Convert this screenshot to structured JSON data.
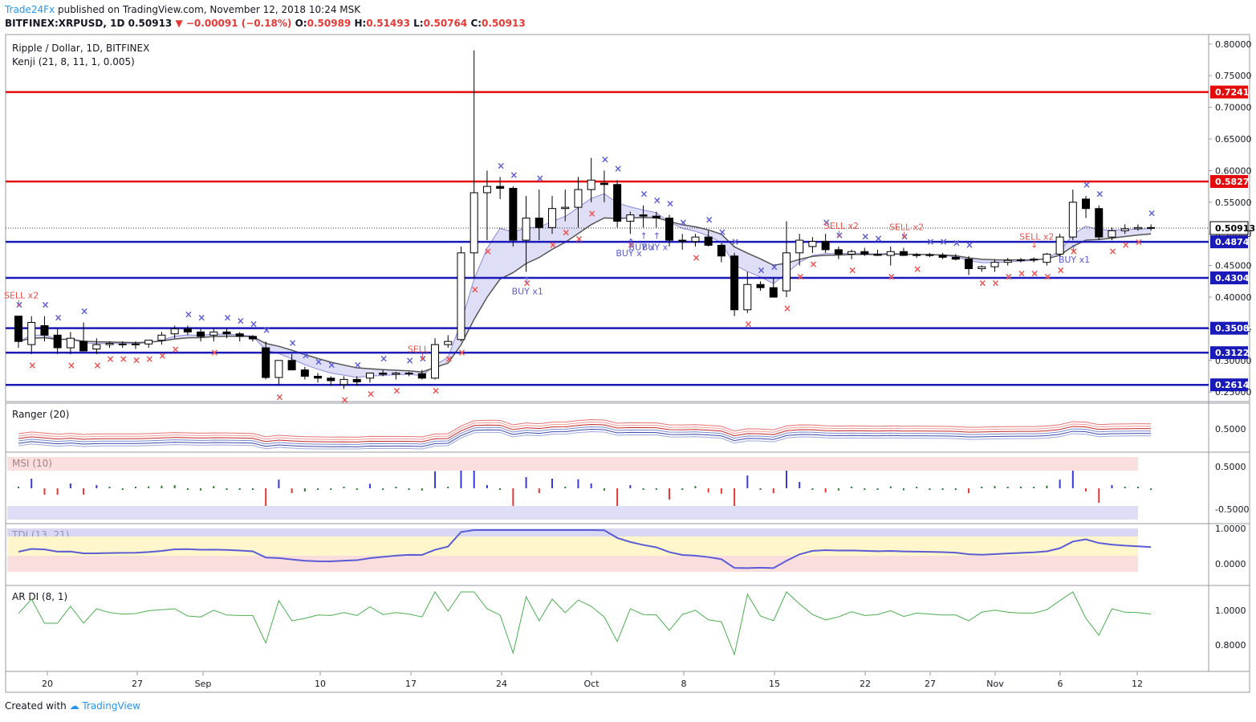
{
  "header": {
    "author": "Trade24Fx",
    "published_text": "published on TradingView.com, November 12, 2018 10:24 MSK",
    "symbol": "BITFINEX:XRPUSD, 1D",
    "last": "0.50913",
    "change": "▼ −0.00091 (−0.18%)",
    "open_label": "O:",
    "open": "0.50989",
    "high_label": "H:",
    "high": "0.51493",
    "low_label": "L:",
    "low": "0.50764",
    "close_label": "C:",
    "close": "0.50913"
  },
  "legend": {
    "title": "Ripple / Dollar, 1D, BITFINEX",
    "kenji": "Kenji (21, 8, 11, 1, 0.005)"
  },
  "footer": {
    "created_with": "Created with",
    "brand": "TradingView"
  },
  "colors": {
    "up_candle": "#ffffff",
    "down_candle": "#000000",
    "resistance": "#e30b0b",
    "support": "#1a1ab8",
    "buy_marker": "#5b5bd6",
    "sell_marker": "#ef5350",
    "panel_border": "#9598a1"
  },
  "chart_data": {
    "type": "candlestick",
    "title": "Ripple / Dollar, 1D, BITFINEX",
    "x_ticks": [
      "20",
      "27",
      "Sep",
      "10",
      "17",
      "24",
      "Oct",
      "8",
      "15",
      "22",
      "27",
      "Nov",
      "6",
      "12"
    ],
    "y_ticks": [
      "0.80000",
      "0.75000",
      "0.70000",
      "0.65000",
      "0.60000",
      "0.55000",
      "0.50000",
      "0.45000",
      "0.40000",
      "0.35000",
      "0.30000",
      "0.25000"
    ],
    "ylim": [
      0.235,
      0.815
    ],
    "candles": [
      [
        0.37,
        0.37,
        0.32,
        0.33
      ],
      [
        0.325,
        0.37,
        0.31,
        0.36
      ],
      [
        0.355,
        0.37,
        0.33,
        0.34
      ],
      [
        0.34,
        0.35,
        0.31,
        0.32
      ],
      [
        0.32,
        0.345,
        0.31,
        0.335
      ],
      [
        0.33,
        0.36,
        0.315,
        0.315
      ],
      [
        0.318,
        0.335,
        0.31,
        0.325
      ],
      [
        0.325,
        0.33,
        0.32,
        0.327
      ],
      [
        0.326,
        0.33,
        0.32,
        0.326
      ],
      [
        0.326,
        0.33,
        0.318,
        0.326
      ],
      [
        0.326,
        0.33,
        0.32,
        0.332
      ],
      [
        0.332,
        0.345,
        0.325,
        0.34
      ],
      [
        0.342,
        0.355,
        0.335,
        0.35
      ],
      [
        0.35,
        0.355,
        0.34,
        0.345
      ],
      [
        0.345,
        0.35,
        0.33,
        0.338
      ],
      [
        0.34,
        0.35,
        0.33,
        0.345
      ],
      [
        0.345,
        0.35,
        0.335,
        0.342
      ],
      [
        0.342,
        0.345,
        0.33,
        0.338
      ],
      [
        0.338,
        0.34,
        0.33,
        0.334
      ],
      [
        0.32,
        0.33,
        0.27,
        0.273
      ],
      [
        0.273,
        0.3,
        0.26,
        0.3
      ],
      [
        0.3,
        0.31,
        0.285,
        0.285
      ],
      [
        0.285,
        0.29,
        0.27,
        0.275
      ],
      [
        0.275,
        0.28,
        0.265,
        0.272
      ],
      [
        0.272,
        0.275,
        0.26,
        0.268
      ],
      [
        0.262,
        0.275,
        0.255,
        0.27
      ],
      [
        0.27,
        0.275,
        0.26,
        0.266
      ],
      [
        0.272,
        0.28,
        0.265,
        0.28
      ],
      [
        0.28,
        0.285,
        0.275,
        0.278
      ],
      [
        0.278,
        0.282,
        0.27,
        0.28
      ],
      [
        0.28,
        0.282,
        0.275,
        0.279
      ],
      [
        0.279,
        0.285,
        0.27,
        0.272
      ],
      [
        0.272,
        0.335,
        0.27,
        0.325
      ],
      [
        0.325,
        0.34,
        0.32,
        0.33
      ],
      [
        0.333,
        0.48,
        0.33,
        0.47
      ],
      [
        0.47,
        0.79,
        0.43,
        0.565
      ],
      [
        0.565,
        0.6,
        0.49,
        0.575
      ],
      [
        0.575,
        0.59,
        0.555,
        0.572
      ],
      [
        0.572,
        0.575,
        0.48,
        0.49
      ],
      [
        0.49,
        0.56,
        0.44,
        0.525
      ],
      [
        0.525,
        0.57,
        0.49,
        0.51
      ],
      [
        0.51,
        0.56,
        0.5,
        0.54
      ],
      [
        0.54,
        0.57,
        0.52,
        0.542
      ],
      [
        0.542,
        0.59,
        0.51,
        0.57
      ],
      [
        0.57,
        0.62,
        0.55,
        0.585
      ],
      [
        0.58,
        0.6,
        0.55,
        0.578
      ],
      [
        0.578,
        0.585,
        0.51,
        0.52
      ],
      [
        0.52,
        0.535,
        0.5,
        0.53
      ],
      [
        0.53,
        0.545,
        0.51,
        0.528
      ],
      [
        0.528,
        0.535,
        0.51,
        0.525
      ],
      [
        0.525,
        0.53,
        0.48,
        0.49
      ],
      [
        0.49,
        0.5,
        0.475,
        0.488
      ],
      [
        0.488,
        0.5,
        0.48,
        0.495
      ],
      [
        0.495,
        0.505,
        0.48,
        0.482
      ],
      [
        0.482,
        0.485,
        0.455,
        0.465
      ],
      [
        0.465,
        0.47,
        0.37,
        0.38
      ],
      [
        0.38,
        0.44,
        0.375,
        0.42
      ],
      [
        0.42,
        0.425,
        0.41,
        0.415
      ],
      [
        0.415,
        0.43,
        0.4,
        0.4
      ],
      [
        0.41,
        0.52,
        0.4,
        0.47
      ],
      [
        0.47,
        0.5,
        0.45,
        0.49
      ],
      [
        0.48,
        0.495,
        0.47,
        0.488
      ],
      [
        0.488,
        0.5,
        0.47,
        0.475
      ],
      [
        0.475,
        0.48,
        0.46,
        0.468
      ],
      [
        0.468,
        0.475,
        0.46,
        0.472
      ],
      [
        0.472,
        0.478,
        0.465,
        0.468
      ],
      [
        0.468,
        0.475,
        0.465,
        0.466
      ],
      [
        0.466,
        0.48,
        0.45,
        0.472
      ],
      [
        0.472,
        0.478,
        0.465,
        0.466
      ],
      [
        0.466,
        0.47,
        0.462,
        0.467
      ],
      [
        0.467,
        0.47,
        0.463,
        0.466
      ],
      [
        0.466,
        0.47,
        0.46,
        0.463
      ],
      [
        0.463,
        0.468,
        0.458,
        0.46
      ],
      [
        0.46,
        0.465,
        0.435,
        0.445
      ],
      [
        0.445,
        0.45,
        0.44,
        0.448
      ],
      [
        0.448,
        0.46,
        0.44,
        0.455
      ],
      [
        0.455,
        0.462,
        0.45,
        0.458
      ],
      [
        0.458,
        0.462,
        0.455,
        0.459
      ],
      [
        0.459,
        0.463,
        0.455,
        0.46
      ],
      [
        0.455,
        0.47,
        0.45,
        0.468
      ],
      [
        0.468,
        0.5,
        0.46,
        0.495
      ],
      [
        0.495,
        0.57,
        0.49,
        0.55
      ],
      [
        0.555,
        0.56,
        0.525,
        0.54
      ],
      [
        0.54,
        0.545,
        0.49,
        0.495
      ],
      [
        0.495,
        0.51,
        0.49,
        0.505
      ],
      [
        0.505,
        0.515,
        0.5,
        0.508
      ],
      [
        0.508,
        0.515,
        0.505,
        0.51
      ],
      [
        0.51,
        0.515,
        0.505,
        0.509
      ]
    ],
    "horizontal_levels": [
      {
        "label": "0.72416",
        "kind": "resistance"
      },
      {
        "label": "0.58278",
        "kind": "resistance"
      },
      {
        "label": "0.48741",
        "kind": "support"
      },
      {
        "label": "0.43043",
        "kind": "support"
      },
      {
        "label": "0.35089",
        "kind": "support"
      },
      {
        "label": "0.31224",
        "kind": "support"
      },
      {
        "label": "0.26141",
        "kind": "support"
      }
    ],
    "last_price_label": "0.50913",
    "signals": [
      {
        "text": "SELL x2",
        "kind": "sell",
        "bar": 0
      },
      {
        "text": "SELL",
        "kind": "sell",
        "bar": 31
      },
      {
        "text": "BUY x1",
        "kind": "buy",
        "bar": 39
      },
      {
        "text": "BUY x",
        "kind": "buy",
        "bar": 47
      },
      {
        "text": "BUY x",
        "kind": "buy",
        "bar": 48
      },
      {
        "text": "BUY x",
        "kind": "buy",
        "bar": 49
      },
      {
        "text": "SELL x2",
        "kind": "sell",
        "bar": 63
      },
      {
        "text": "SELL x2",
        "kind": "sell",
        "bar": 68
      },
      {
        "text": "SELL x2",
        "kind": "sell",
        "bar": 78
      },
      {
        "text": "BUY x1",
        "kind": "buy",
        "bar": 81
      }
    ],
    "indicators": [
      {
        "name": "Ranger (20)",
        "y_ticks": [
          "0.5000"
        ]
      },
      {
        "name": "MSI (10)",
        "y_ticks": [
          "0.5000",
          "-0.5000"
        ]
      },
      {
        "name": "TDI (13, 21)",
        "y_ticks": [
          "1.0000",
          "0.0000"
        ]
      },
      {
        "name": "AR DI (8, 1)",
        "y_ticks": [
          "1.0000",
          "0.8000"
        ]
      }
    ]
  }
}
